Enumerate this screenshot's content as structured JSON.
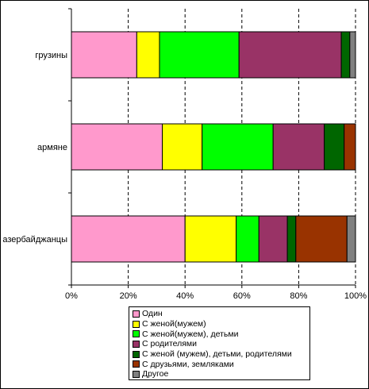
{
  "chart_data": {
    "type": "bar",
    "orientation": "horizontal",
    "stacked": "percent",
    "categories": [
      "грузины",
      "армяне",
      "азербайджанцы"
    ],
    "series": [
      {
        "name": "Один",
        "color": "#ff99cc",
        "values": [
          23,
          32,
          40
        ]
      },
      {
        "name": "С женой(мужем)",
        "color": "#ffff00",
        "values": [
          8,
          14,
          18
        ]
      },
      {
        "name": "С женой(мужем), детьми",
        "color": "#00ff00",
        "values": [
          28,
          25,
          8
        ]
      },
      {
        "name": "С родителями",
        "color": "#993366",
        "values": [
          36,
          18,
          10
        ]
      },
      {
        "name": "С женой (мужем), детьми, родителями",
        "color": "#006600",
        "values": [
          3,
          7,
          3
        ]
      },
      {
        "name": "С друзьями, земляками",
        "color": "#993300",
        "values": [
          0,
          4,
          18
        ]
      },
      {
        "name": "Другое",
        "color": "#808080",
        "values": [
          2,
          0,
          3
        ]
      }
    ],
    "xlim": [
      0,
      100
    ],
    "xticks": [
      "0%",
      "20%",
      "40%",
      "60%",
      "80%",
      "100%"
    ],
    "grid": "vertical dashed",
    "legend_position": "bottom"
  }
}
